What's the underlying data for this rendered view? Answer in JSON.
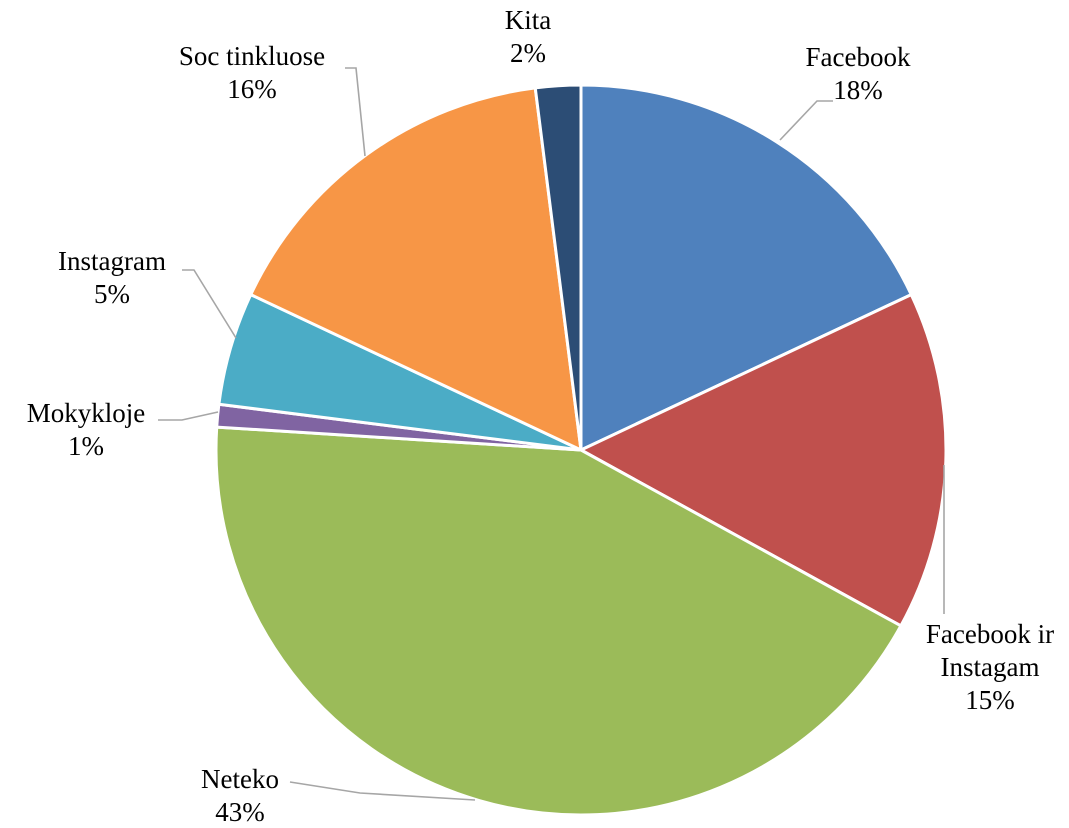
{
  "chart_data": {
    "type": "pie",
    "title": "",
    "categories": [
      "Facebook",
      "Facebook ir Instagam",
      "Neteko",
      "Mokykloje",
      "Instagram",
      "Soc tinkluose",
      "Kita"
    ],
    "label_lines": [
      [
        "Facebook"
      ],
      [
        "Facebook ir",
        "Instagam"
      ],
      [
        "Neteko"
      ],
      [
        "Mokykloje"
      ],
      [
        "Instagram"
      ],
      [
        "Soc tinkluose"
      ],
      [
        "Kita"
      ]
    ],
    "values": [
      18,
      15,
      43,
      1,
      5,
      16,
      2
    ],
    "percent_labels": [
      "18%",
      "15%",
      "43%",
      "1%",
      "5%",
      "16%",
      "2%"
    ],
    "unit": "%",
    "legend": "none",
    "data_labels": "outside with leader lines",
    "colors": [
      "#4F81BD",
      "#C0504D",
      "#9BBB59",
      "#8064A2",
      "#4BACC6",
      "#F79646",
      "#2C4D75"
    ]
  }
}
